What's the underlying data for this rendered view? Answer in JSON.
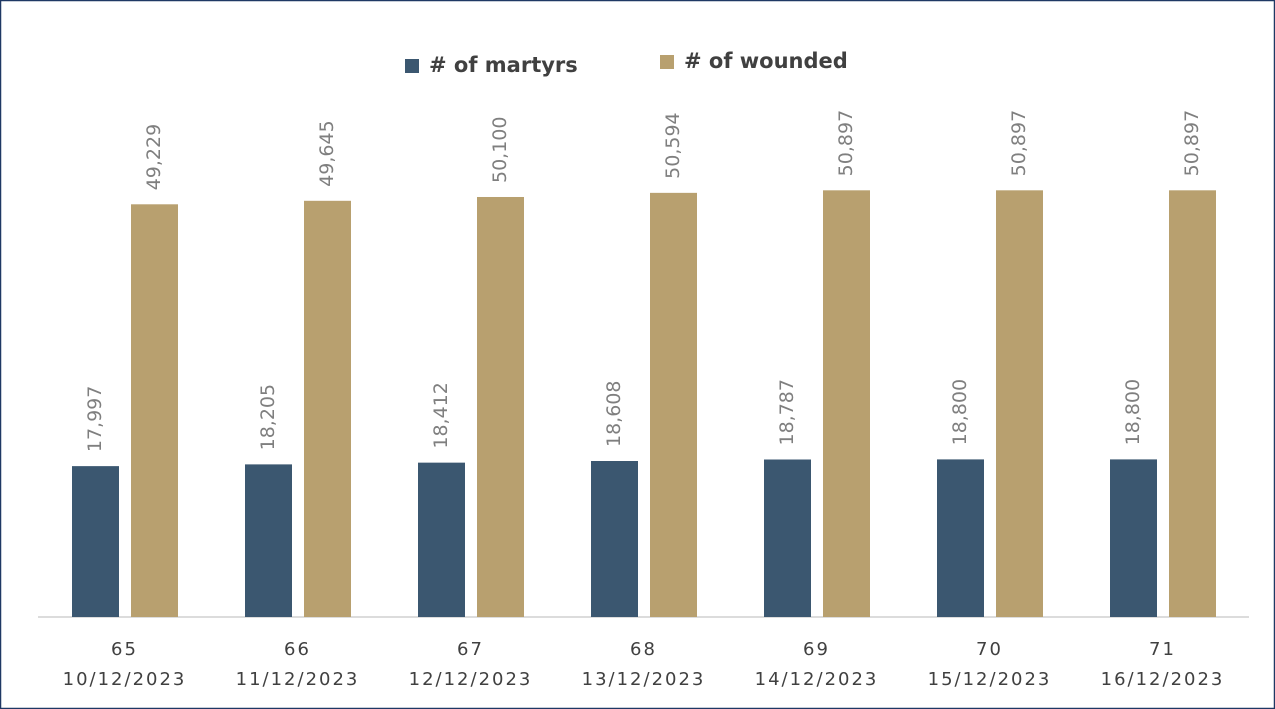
{
  "chart_data": {
    "type": "bar",
    "categories": [
      "65",
      "66",
      "67",
      "68",
      "69",
      "70",
      "71"
    ],
    "dates": [
      "10/12/2023",
      "11/12/2023",
      "12/12/2023",
      "13/12/2023",
      "14/12/2023",
      "15/12/2023",
      "16/12/2023"
    ],
    "series": [
      {
        "name": "# of martyrs",
        "color": "#3b5770",
        "values": [
          17997,
          18205,
          18412,
          18608,
          18787,
          18800,
          18800
        ],
        "value_labels": [
          "17,997",
          "18,205",
          "18,412",
          "18,608",
          "18,787",
          "18,800",
          "18,800"
        ]
      },
      {
        "name": "# of wounded",
        "color": "#b8a06f",
        "values": [
          49229,
          49645,
          50100,
          50594,
          50897,
          50897,
          50897
        ],
        "value_labels": [
          "49,229",
          "49,645",
          "50,100",
          "50,594",
          "50,897",
          "50,897",
          "50,897"
        ]
      }
    ],
    "ylim": [
      0,
      60000
    ],
    "legend": "top"
  }
}
